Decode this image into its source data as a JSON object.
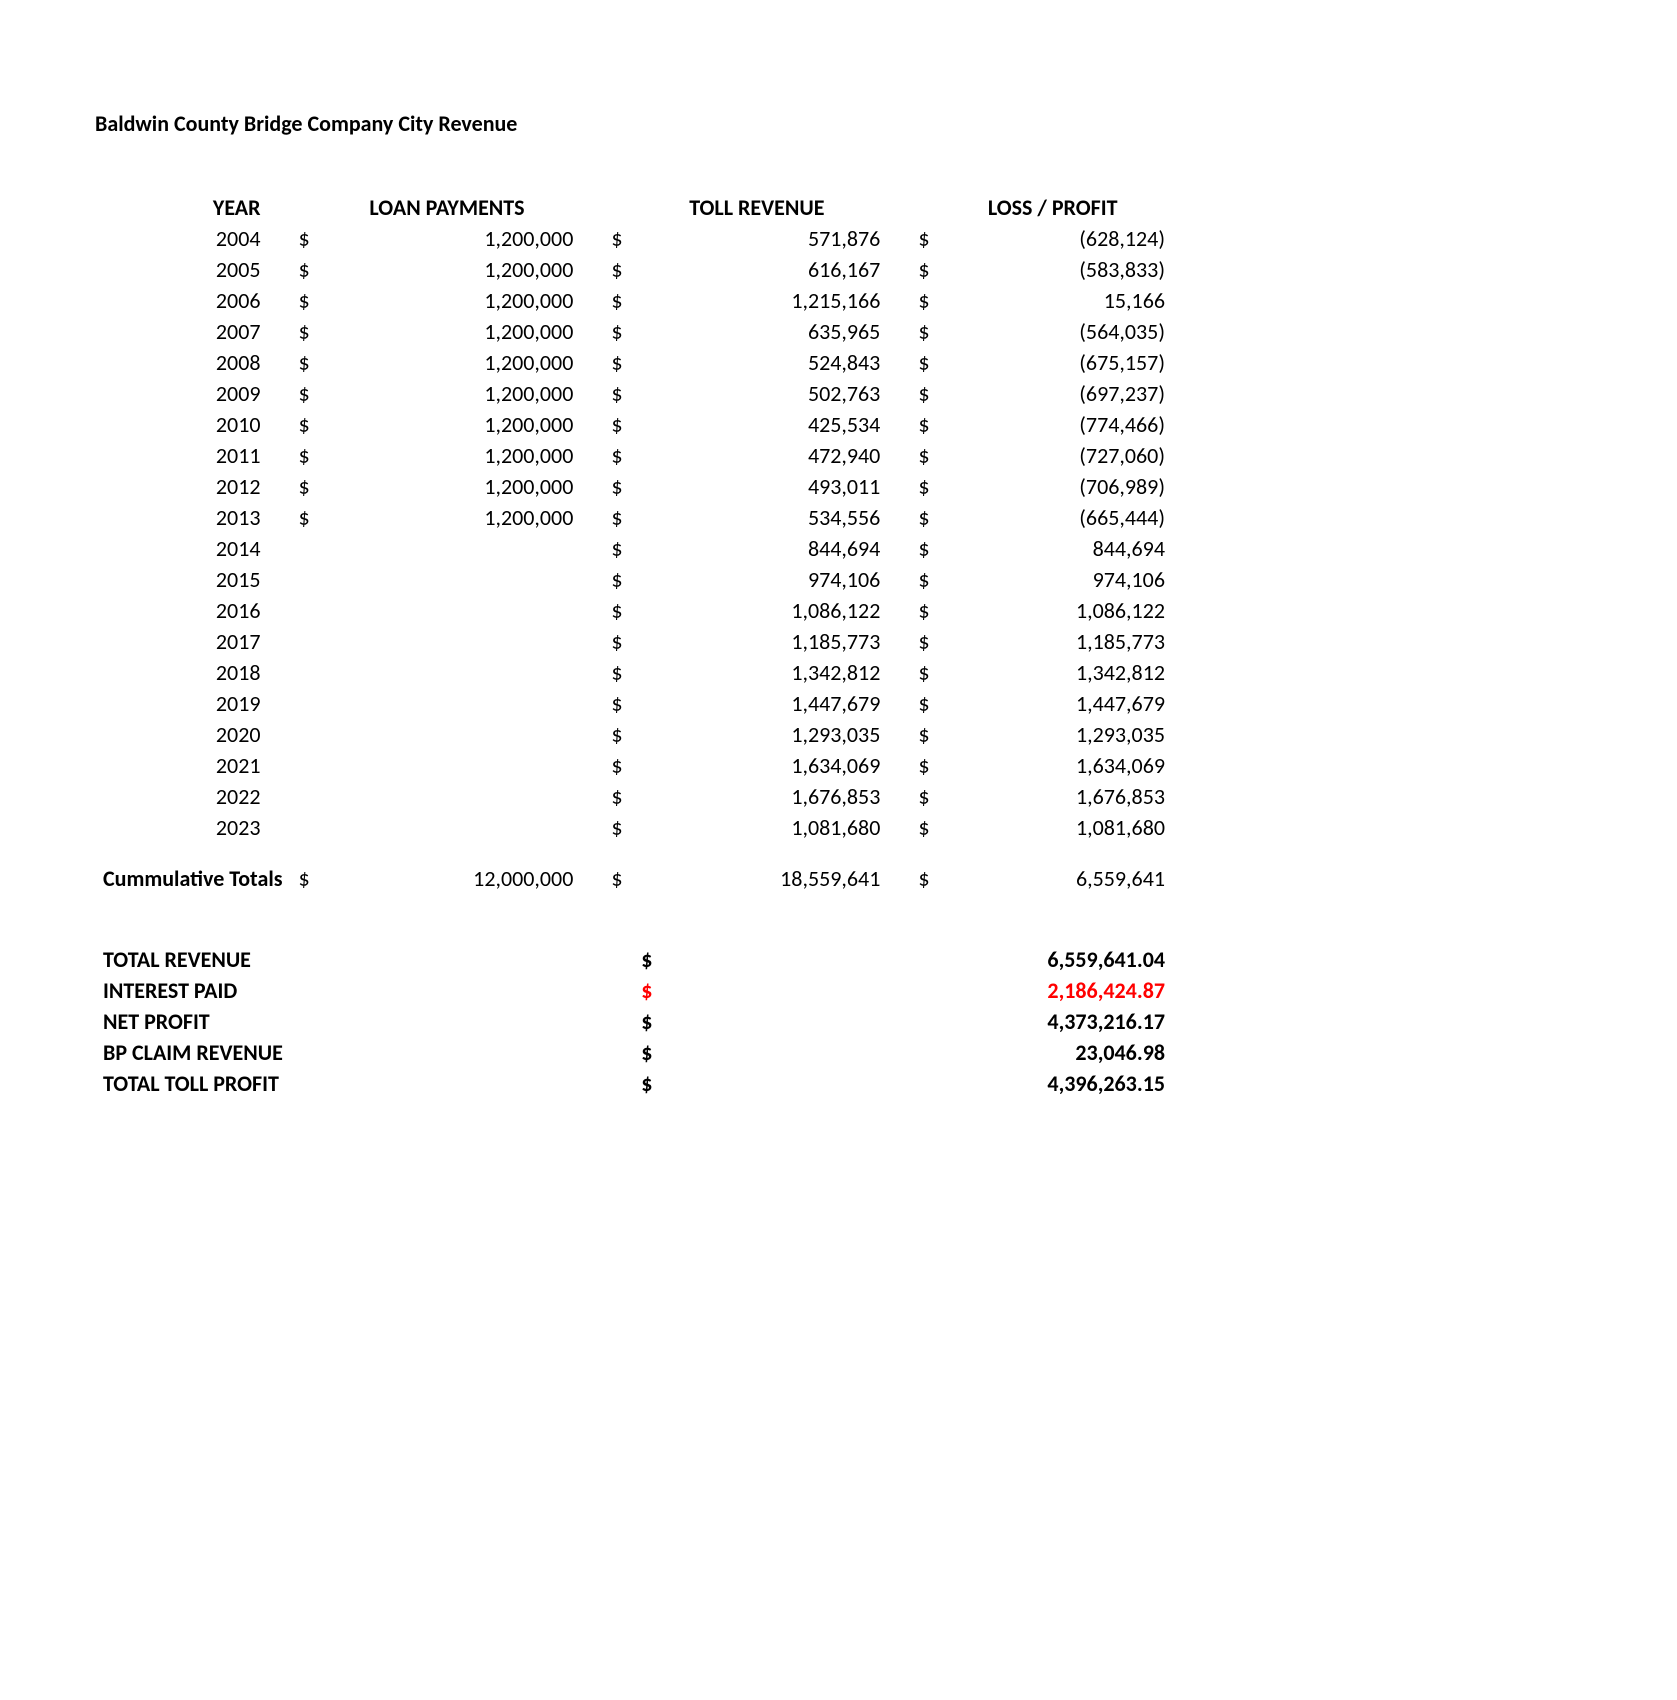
{
  "title": "Baldwin County Bridge Company City Revenue",
  "headers": {
    "year": "YEAR",
    "loan": "LOAN PAYMENTS",
    "toll": "TOLL REVENUE",
    "loss_profit": "LOSS / PROFIT"
  },
  "rows": [
    {
      "year": "2004",
      "loan": "1,200,000",
      "toll": "571,876",
      "lp": "(628,124)"
    },
    {
      "year": "2005",
      "loan": "1,200,000",
      "toll": "616,167",
      "lp": "(583,833)"
    },
    {
      "year": "2006",
      "loan": "1,200,000",
      "toll": "1,215,166",
      "lp": "15,166"
    },
    {
      "year": "2007",
      "loan": "1,200,000",
      "toll": "635,965",
      "lp": "(564,035)"
    },
    {
      "year": "2008",
      "loan": "1,200,000",
      "toll": "524,843",
      "lp": "(675,157)"
    },
    {
      "year": "2009",
      "loan": "1,200,000",
      "toll": "502,763",
      "lp": "(697,237)"
    },
    {
      "year": "2010",
      "loan": "1,200,000",
      "toll": "425,534",
      "lp": "(774,466)"
    },
    {
      "year": "2011",
      "loan": "1,200,000",
      "toll": "472,940",
      "lp": "(727,060)"
    },
    {
      "year": "2012",
      "loan": "1,200,000",
      "toll": "493,011",
      "lp": "(706,989)"
    },
    {
      "year": "2013",
      "loan": "1,200,000",
      "toll": "534,556",
      "lp": "(665,444)"
    },
    {
      "year": "2014",
      "loan": "",
      "toll": "844,694",
      "lp": "844,694"
    },
    {
      "year": "2015",
      "loan": "",
      "toll": "974,106",
      "lp": "974,106"
    },
    {
      "year": "2016",
      "loan": "",
      "toll": "1,086,122",
      "lp": "1,086,122"
    },
    {
      "year": "2017",
      "loan": "",
      "toll": "1,185,773",
      "lp": "1,185,773"
    },
    {
      "year": "2018",
      "loan": "",
      "toll": "1,342,812",
      "lp": "1,342,812"
    },
    {
      "year": "2019",
      "loan": "",
      "toll": "1,447,679",
      "lp": "1,447,679"
    },
    {
      "year": "2020",
      "loan": "",
      "toll": "1,293,035",
      "lp": "1,293,035"
    },
    {
      "year": "2021",
      "loan": "",
      "toll": "1,634,069",
      "lp": "1,634,069"
    },
    {
      "year": "2022",
      "loan": "",
      "toll": "1,676,853",
      "lp": "1,676,853"
    },
    {
      "year": "2023",
      "loan": "",
      "toll": "1,081,680",
      "lp": "1,081,680"
    }
  ],
  "totals": {
    "label": "Cummulative Totals",
    "loan": "12,000,000",
    "toll": "18,559,641",
    "lp": "6,559,641"
  },
  "summary": [
    {
      "label": "TOTAL REVENUE",
      "value": "6,559,641.04",
      "red": false
    },
    {
      "label": "INTEREST PAID",
      "value": "2,186,424.87",
      "red": true
    },
    {
      "label": "NET PROFIT",
      "value": "4,373,216.17",
      "red": false
    },
    {
      "label": "BP CLAIM REVENUE",
      "value": "23,046.98",
      "red": false
    },
    {
      "label": "TOTAL TOLL PROFIT",
      "value": "4,396,263.15",
      "red": false
    }
  ]
}
